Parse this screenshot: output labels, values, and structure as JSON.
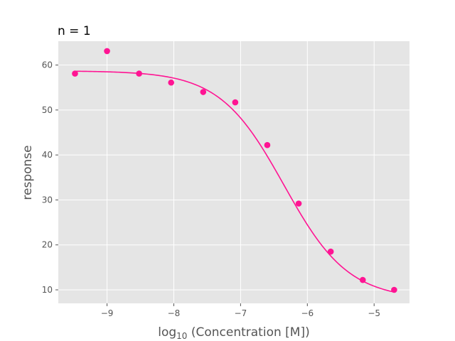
{
  "chart_data": {
    "type": "scatter",
    "title": "n = 1",
    "xlabel": {
      "prefix": "log",
      "subscript": "10",
      "suffix": " (Concentration [M])"
    },
    "ylabel": "response",
    "xlim": [
      -9.73,
      -4.47
    ],
    "ylim": [
      7,
      65.3
    ],
    "xticks": [
      -9,
      -8,
      -7,
      -6,
      -5
    ],
    "xtick_labels": [
      "−9",
      "−8",
      "−7",
      "−6",
      "−5"
    ],
    "yticks": [
      10,
      20,
      30,
      40,
      50,
      60
    ],
    "ytick_labels": [
      "10",
      "20",
      "30",
      "40",
      "50",
      "60"
    ],
    "grid": true,
    "colors": {
      "marker": "#ff1493",
      "background": "#e5e5e5",
      "grid": "#ffffff"
    },
    "series": [
      {
        "points": [
          {
            "x": -9.48,
            "y": 58.1
          },
          {
            "x": -9.0,
            "y": 63.1
          },
          {
            "x": -8.52,
            "y": 58.1
          },
          {
            "x": -8.04,
            "y": 56.1
          },
          {
            "x": -7.56,
            "y": 54.0
          },
          {
            "x": -7.08,
            "y": 51.7
          },
          {
            "x": -6.6,
            "y": 42.2
          },
          {
            "x": -6.13,
            "y": 29.2
          },
          {
            "x": -5.65,
            "y": 18.5
          },
          {
            "x": -5.17,
            "y": 12.2
          },
          {
            "x": -4.7,
            "y": 10.0
          }
        ]
      }
    ],
    "fit_curve": {
      "type": "hill",
      "top": 58.7,
      "bottom": 7.9,
      "log_ic50": -6.35,
      "hill_slope": 0.9,
      "x_range": [
        -9.48,
        -4.7
      ]
    }
  }
}
